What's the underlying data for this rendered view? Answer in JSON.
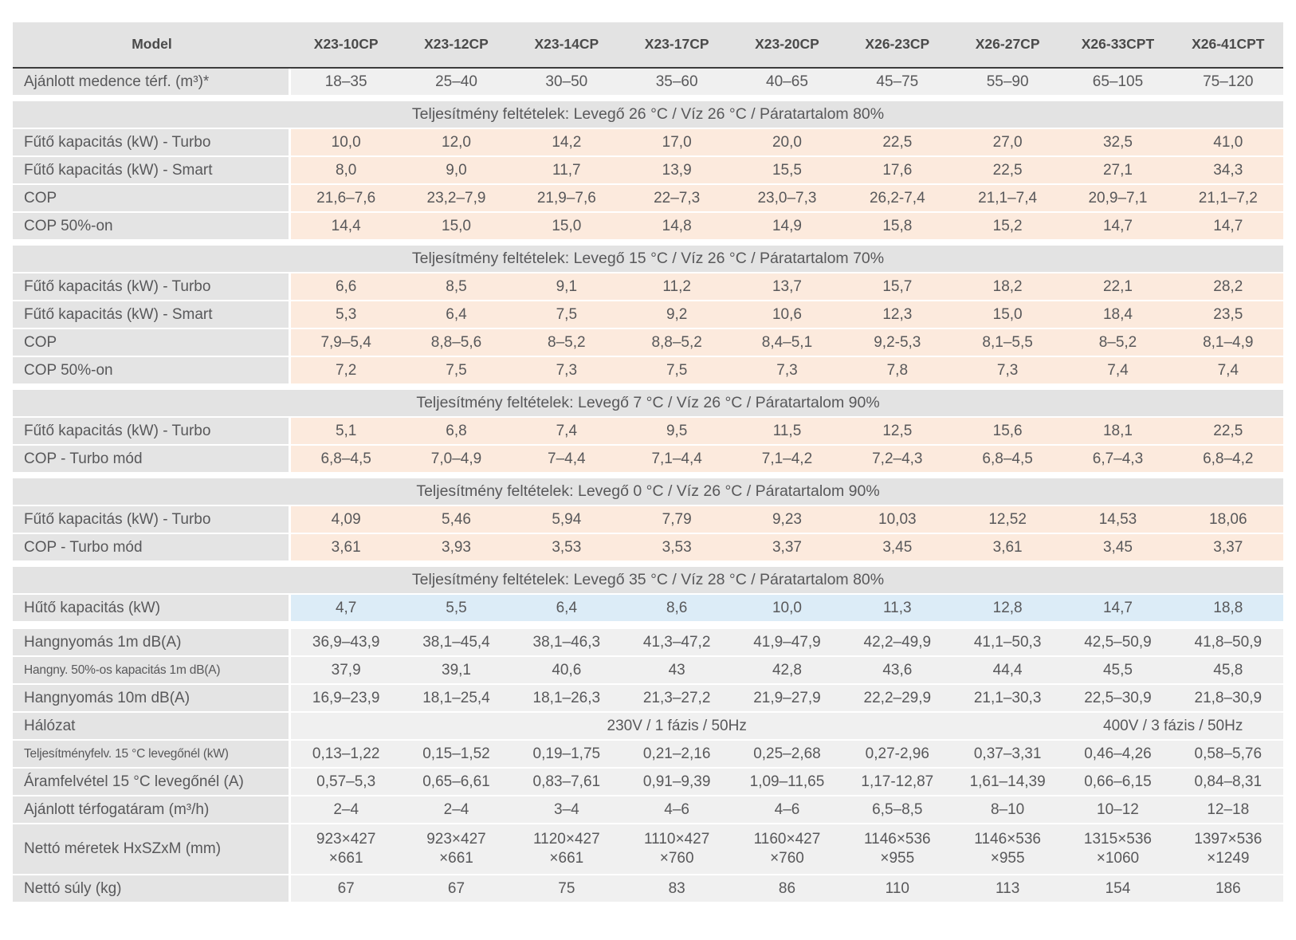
{
  "colors": {
    "peach": "#fceadd",
    "blue": "#dcecf7",
    "graycell": "#f0f0f0",
    "labelbg": "#e4e4e4",
    "headerbg": "#e3e3e3",
    "text": "#58585a",
    "headertext": "#4a4a4a",
    "borderdark": "#3d3d3d"
  },
  "table": {
    "header": {
      "model_label": "Model",
      "models": [
        "X23-10CP",
        "X23-12CP",
        "X23-14CP",
        "X23-17CP",
        "X23-20CP",
        "X26-23CP",
        "X26-27CP",
        "X26-33CPT",
        "X26-41CPT"
      ]
    },
    "body": [
      {
        "type": "row",
        "variant": "gray",
        "label": "Ajánlott medence térf. (m³)*",
        "values": [
          "18–35",
          "25–40",
          "30–50",
          "35–60",
          "40–65",
          "45–75",
          "55–90",
          "65–105",
          "75–120"
        ]
      },
      {
        "type": "section",
        "label": "Teljesítmény feltételek: Levegő 26 °C / Víz 26 °C / Páratartalom 80%"
      },
      {
        "type": "row",
        "variant": "peach",
        "label": "Fűtő kapacitás (kW) - Turbo",
        "values": [
          "10,0",
          "12,0",
          "14,2",
          "17,0",
          "20,0",
          "22,5",
          "27,0",
          "32,5",
          "41,0"
        ]
      },
      {
        "type": "row",
        "variant": "peach",
        "label": "Fűtő kapacitás (kW) - Smart",
        "values": [
          "8,0",
          "9,0",
          "11,7",
          "13,9",
          "15,5",
          "17,6",
          "22,5",
          "27,1",
          "34,3"
        ]
      },
      {
        "type": "row",
        "variant": "peach",
        "label": "COP",
        "values": [
          "21,6–7,6",
          "23,2–7,9",
          "21,9–7,6",
          "22–7,3",
          "23,0–7,3",
          "26,2-7,4",
          "21,1–7,4",
          "20,9–7,1",
          "21,1–7,2"
        ]
      },
      {
        "type": "row",
        "variant": "peach",
        "label": "COP 50%-on",
        "values": [
          "14,4",
          "15,0",
          "15,0",
          "14,8",
          "14,9",
          "15,8",
          "15,2",
          "14,7",
          "14,7"
        ]
      },
      {
        "type": "section",
        "label": "Teljesítmény feltételek: Levegő 15 °C / Víz 26 °C / Páratartalom 70%"
      },
      {
        "type": "row",
        "variant": "peach",
        "label": "Fűtő kapacitás (kW) - Turbo",
        "values": [
          "6,6",
          "8,5",
          "9,1",
          "11,2",
          "13,7",
          "15,7",
          "18,2",
          "22,1",
          "28,2"
        ]
      },
      {
        "type": "row",
        "variant": "peach",
        "label": "Fűtő kapacitás (kW) - Smart",
        "values": [
          "5,3",
          "6,4",
          "7,5",
          "9,2",
          "10,6",
          "12,3",
          "15,0",
          "18,4",
          "23,5"
        ]
      },
      {
        "type": "row",
        "variant": "peach",
        "label": "COP",
        "values": [
          "7,9–5,4",
          "8,8–5,6",
          "8–5,2",
          "8,8–5,2",
          "8,4–5,1",
          "9,2-5,3",
          "8,1–5,5",
          "8–5,2",
          "8,1–4,9"
        ]
      },
      {
        "type": "row",
        "variant": "peach",
        "label": "COP 50%-on",
        "values": [
          "7,2",
          "7,5",
          "7,3",
          "7,5",
          "7,3",
          "7,8",
          "7,3",
          "7,4",
          "7,4"
        ]
      },
      {
        "type": "section",
        "label": "Teljesítmény feltételek: Levegő 7 °C / Víz 26 °C / Páratartalom 90%"
      },
      {
        "type": "row",
        "variant": "peach",
        "label": "Fűtő kapacitás (kW) - Turbo",
        "values": [
          "5,1",
          "6,8",
          "7,4",
          "9,5",
          "11,5",
          "12,5",
          "15,6",
          "18,1",
          "22,5"
        ]
      },
      {
        "type": "row",
        "variant": "peach",
        "label": "COP - Turbo mód",
        "values": [
          "6,8–4,5",
          "7,0–4,9",
          "7–4,4",
          "7,1–4,4",
          "7,1–4,2",
          "7,2–4,3",
          "6,8–4,5",
          "6,7–4,3",
          "6,8–4,2"
        ]
      },
      {
        "type": "section",
        "label": "Teljesítmény feltételek: Levegő 0 °C / Víz 26 °C / Páratartalom 90%"
      },
      {
        "type": "row",
        "variant": "peach",
        "label": "Fűtő kapacitás (kW) - Turbo",
        "values": [
          "4,09",
          "5,46",
          "5,94",
          "7,79",
          "9,23",
          "10,03",
          "12,52",
          "14,53",
          "18,06"
        ]
      },
      {
        "type": "row",
        "variant": "peach",
        "label": "COP - Turbo mód",
        "values": [
          "3,61",
          "3,93",
          "3,53",
          "3,53",
          "3,37",
          "3,45",
          "3,61",
          "3,45",
          "3,37"
        ]
      },
      {
        "type": "section",
        "label": "Teljesítmény feltételek: Levegő 35 °C / Víz 28 °C / Páratartalom 80%"
      },
      {
        "type": "row",
        "variant": "blue",
        "label": "Hűtő kapacitás (kW)",
        "values": [
          "4,7",
          "5,5",
          "6,4",
          "8,6",
          "10,0",
          "11,3",
          "12,8",
          "14,7",
          "18,8"
        ]
      },
      {
        "type": "gap"
      },
      {
        "type": "row",
        "variant": "gray",
        "label": "Hangnyomás 1m dB(A)",
        "values": [
          "36,9–43,9",
          "38,1–45,4",
          "38,1–46,3",
          "41,3–47,2",
          "41,9–47,9",
          "42,2–49,9",
          "41,1–50,3",
          "42,5–50,9",
          "41,8–50,9"
        ]
      },
      {
        "type": "row",
        "variant": "gray",
        "label": "Hangny. 50%-os kapacitás 1m dB(A)",
        "values": [
          "37,9",
          "39,1",
          "40,6",
          "43",
          "42,8",
          "43,6",
          "44,4",
          "45,5",
          "45,8"
        ]
      },
      {
        "type": "row",
        "variant": "gray",
        "label": "Hangnyomás 10m dB(A)",
        "values": [
          "16,9–23,9",
          "18,1–25,4",
          "18,1–26,3",
          "21,3–27,2",
          "21,9–27,9",
          "22,2–29,9",
          "21,1–30,3",
          "22,5–30,9",
          "21,8–30,9"
        ]
      },
      {
        "type": "row",
        "variant": "gray",
        "label": "Hálózat",
        "spans": [
          {
            "text": "230V / 1 fázis / 50Hz",
            "cols": 7
          },
          {
            "text": "400V / 3 fázis / 50Hz",
            "cols": 2
          }
        ]
      },
      {
        "type": "row",
        "variant": "gray",
        "label": "Teljesítményfelv. 15 °C levegőnél (kW)",
        "values": [
          "0,13–1,22",
          "0,15–1,52",
          "0,19–1,75",
          "0,21–2,16",
          "0,25–2,68",
          "0,27-2,96",
          "0,37–3,31",
          "0,46–4,26",
          "0,58–5,76"
        ]
      },
      {
        "type": "row",
        "variant": "gray",
        "label": "Áramfelvétel 15 °C levegőnél (A)",
        "values": [
          "0,57–5,3",
          "0,65–6,61",
          "0,83–7,61",
          "0,91–9,39",
          "1,09–11,65",
          "1,17-12,87",
          "1,61–14,39",
          "0,66–6,15",
          "0,84–8,31"
        ]
      },
      {
        "type": "row",
        "variant": "gray",
        "label": "Ajánlott térfogatáram (m³/h)",
        "values": [
          "2–4",
          "2–4",
          "3–4",
          "4–6",
          "4–6",
          "6,5–8,5",
          "8–10",
          "10–12",
          "12–18"
        ]
      },
      {
        "type": "row",
        "variant": "gray",
        "label": "Nettó méretek HxSZxM (mm)",
        "values": [
          "923×427\n×661",
          "923×427\n×661",
          "1120×427\n×661",
          "1110×427\n×760",
          "1160×427\n×760",
          "1146×536\n×955",
          "1146×536\n×955",
          "1315×536\n×1060",
          "1397×536\n×1249"
        ]
      },
      {
        "type": "row",
        "variant": "gray",
        "label": "Nettó súly (kg)",
        "values": [
          "67",
          "67",
          "75",
          "83",
          "86",
          "110",
          "113",
          "154",
          "186"
        ]
      }
    ]
  }
}
